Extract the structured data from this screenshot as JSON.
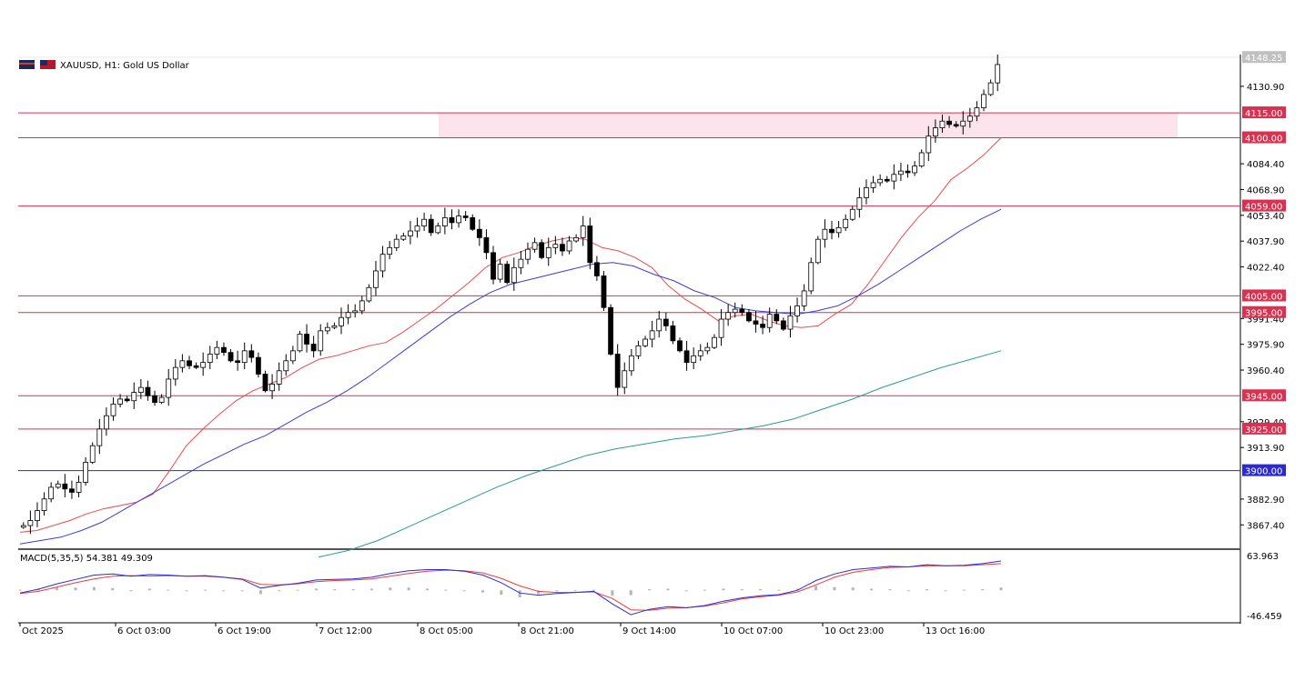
{
  "header": {
    "title": "XAUUSD, H1:  Gold US Dollar",
    "macd_label": "MACD(5,35,5) 54.381 49.309"
  },
  "colors": {
    "bull_body": "#ffffff",
    "bear_body": "#000000",
    "wick": "#000000",
    "level_line": "#d9314f",
    "level_tag": "#d9314f",
    "blue_level": "#2a2ad0",
    "zone_fill": "#fde4ec",
    "ma_fast": "#f04a4a",
    "ma_mid": "#3b3be0",
    "ma_slow": "#2a9d8f",
    "price_tag": "#c0c0c0",
    "macd_line": "#2b2bd6",
    "signal_line": "#ef3b3b",
    "hist_bar": "#b5b5b5"
  },
  "price_axis": {
    "ticks": [
      "4130.90",
      "4084.40",
      "4068.90",
      "4053.40",
      "4037.90",
      "4022.40",
      "3991.40",
      "3975.90",
      "3960.40",
      "3929.40",
      "3913.90",
      "3882.90",
      "3867.40"
    ],
    "current_price": "4148.25"
  },
  "time_axis": {
    "labels": [
      "Oct 2025",
      "6 Oct 03:00",
      "6 Oct 19:00",
      "7 Oct 12:00",
      "8 Oct 05:00",
      "8 Oct 21:00",
      "9 Oct 14:00",
      "10 Oct 07:00",
      "10 Oct 23:00",
      "13 Oct 16:00"
    ]
  },
  "macd_axis": {
    "top": "63.963",
    "bottom": "-46.459"
  },
  "chart_data": {
    "type": "candlestick",
    "symbol": "XAUUSD",
    "timeframe": "H1",
    "ylim": [
      3855,
      4150
    ],
    "levels": [
      {
        "label": "4115.00",
        "value": 4115,
        "style": "red"
      },
      {
        "label": "4100.00",
        "value": 4100,
        "style": "red"
      },
      {
        "label": "4059.00",
        "value": 4059,
        "style": "red"
      },
      {
        "label": "4005.00",
        "value": 4005,
        "style": "red"
      },
      {
        "label": "3995.00",
        "value": 3995,
        "style": "red"
      },
      {
        "label": "3945.00",
        "value": 3945,
        "style": "red"
      },
      {
        "label": "3925.00",
        "value": 3925,
        "style": "red"
      },
      {
        "label": "3900.00",
        "value": 3900,
        "style": "blue"
      }
    ],
    "zone": {
      "from": 4100,
      "to": 4115
    },
    "price_path": [
      3866,
      3867,
      3870,
      3876,
      3883,
      3890,
      3892,
      3889,
      3887,
      3893,
      3905,
      3915,
      3925,
      3933,
      3940,
      3943,
      3942,
      3947,
      3950,
      3945,
      3941,
      3944,
      3955,
      3962,
      3966,
      3963,
      3962,
      3965,
      3970,
      3974,
      3971,
      3966,
      3965,
      3972,
      3968,
      3958,
      3948,
      3952,
      3960,
      3966,
      3972,
      3982,
      3976,
      3972,
      3984,
      3986,
      3987,
      3992,
      3995,
      3996,
      4002,
      4010,
      4020,
      4030,
      4034,
      4039,
      4041,
      4044,
      4047,
      4051,
      4043,
      4047,
      4052,
      4049,
      4053,
      4052,
      4045,
      4040,
      4031,
      4015,
      4024,
      4013,
      4022,
      4027,
      4033,
      4037,
      4028,
      4034,
      4036,
      4032,
      4038,
      4040,
      4047,
      4025,
      4017,
      3998,
      3970,
      3950,
      3960,
      3969,
      3975,
      3979,
      3984,
      3991,
      3987,
      3978,
      3972,
      3965,
      3969,
      3972,
      3974,
      3980,
      3991,
      3995,
      3997,
      3995,
      3990,
      3988,
      3986,
      3994,
      3990,
      3985,
      3993,
      3999,
      4008,
      4025,
      4039,
      4045,
      4043,
      4046,
      4051,
      4057,
      4064,
      4070,
      4073,
      4075,
      4074,
      4078,
      4080,
      4079,
      4083,
      4091,
      4101,
      4106,
      4110,
      4108,
      4107,
      4110,
      4113,
      4118,
      4126,
      4133,
      4144
    ],
    "ma_fast": [
      3863,
      3864,
      3867,
      3870,
      3874,
      3877,
      3879,
      3881,
      3886,
      3900,
      3915,
      3925,
      3934,
      3942,
      3948,
      3952,
      3956,
      3962,
      3967,
      3969,
      3972,
      3975,
      3977,
      3983,
      3990,
      3997,
      4005,
      4013,
      4022,
      4028,
      4031,
      4035,
      4038,
      4040,
      4039,
      4034,
      4032,
      4028,
      4022,
      4011,
      4003,
      3997,
      3990,
      3993,
      3994,
      3990,
      3987,
      3986,
      3987,
      3994,
      4000,
      4012,
      4026,
      4040,
      4052,
      4062,
      4075,
      4082,
      4090,
      4100
    ],
    "ma_mid": [
      3856,
      3858,
      3860,
      3864,
      3869,
      3876,
      3883,
      3890,
      3897,
      3904,
      3910,
      3916,
      3921,
      3928,
      3935,
      3941,
      3948,
      3956,
      3965,
      3974,
      3983,
      3992,
      4000,
      4007,
      4012,
      4015,
      4018,
      4021,
      4024,
      4025,
      4023,
      4018,
      4014,
      4008,
      4004,
      3998,
      3996,
      3995,
      3994,
      3996,
      3999,
      4005,
      4012,
      4020,
      4028,
      4036,
      4044,
      4051,
      4057
    ],
    "ma_slow": [
      3848,
      3852,
      3858,
      3866,
      3874,
      3882,
      3890,
      3897,
      3903,
      3909,
      3913,
      3916,
      3919,
      3921,
      3924,
      3927,
      3931,
      3937,
      3943,
      3950,
      3956,
      3962,
      3967,
      3972
    ],
    "macd": [
      -5,
      2,
      12,
      20,
      28,
      30,
      26,
      29,
      28,
      26,
      27,
      24,
      20,
      4,
      9,
      13,
      19,
      20,
      21,
      24,
      31,
      36,
      38,
      38,
      35,
      28,
      14,
      -5,
      -9,
      -6,
      -4,
      -2,
      -25,
      -45,
      -35,
      -30,
      -32,
      -28,
      -20,
      -14,
      -10,
      -8,
      0,
      18,
      30,
      38,
      41,
      44,
      43,
      47,
      45,
      46,
      49,
      54
    ],
    "signal": [
      -6,
      -2,
      6,
      14,
      21,
      26,
      27,
      26,
      27,
      26,
      26,
      24,
      21,
      11,
      10,
      12,
      16,
      18,
      19,
      21,
      26,
      31,
      35,
      37,
      36,
      32,
      22,
      8,
      -2,
      -4,
      -4,
      -3,
      -15,
      -36,
      -37,
      -33,
      -32,
      -29,
      -23,
      -16,
      -12,
      -9,
      -3,
      10,
      24,
      33,
      38,
      42,
      43,
      45,
      45,
      45,
      47,
      49
    ],
    "histogram": [
      1,
      3,
      5,
      5,
      6,
      4,
      -1,
      3,
      1,
      0,
      1,
      0,
      -1,
      -7,
      -1,
      1,
      3,
      2,
      2,
      3,
      5,
      5,
      3,
      1,
      -1,
      -4,
      -8,
      -13,
      -7,
      -2,
      0,
      1,
      -10,
      -9,
      2,
      3,
      0,
      1,
      3,
      2,
      2,
      1,
      3,
      8,
      6,
      5,
      3,
      2,
      0,
      2,
      0,
      1,
      2,
      5
    ],
    "macd_ylim": [
      -46.459,
      63.963
    ]
  }
}
